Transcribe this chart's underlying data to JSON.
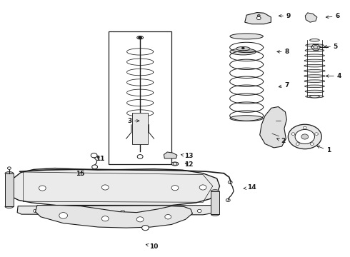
{
  "bg_color": "#ffffff",
  "line_color": "#1a1a1a",
  "fig_width": 4.9,
  "fig_height": 3.6,
  "dpi": 100,
  "label_positions": {
    "1": [
      0.94,
      0.415,
      0.9,
      0.435
    ],
    "2": [
      0.81,
      0.45,
      0.785,
      0.465
    ],
    "3": [
      0.37,
      0.53,
      0.405,
      0.53
    ],
    "4": [
      0.97,
      0.705,
      0.925,
      0.705
    ],
    "5": [
      0.96,
      0.82,
      0.92,
      0.82
    ],
    "6": [
      0.965,
      0.938,
      0.925,
      0.934
    ],
    "7": [
      0.82,
      0.67,
      0.79,
      0.66
    ],
    "8": [
      0.82,
      0.8,
      0.785,
      0.8
    ],
    "9": [
      0.825,
      0.94,
      0.79,
      0.94
    ],
    "10": [
      0.44,
      0.038,
      0.415,
      0.048
    ],
    "11": [
      0.285,
      0.382,
      0.27,
      0.395
    ],
    "12": [
      0.54,
      0.36,
      0.522,
      0.368
    ],
    "13": [
      0.54,
      0.392,
      0.51,
      0.4
    ],
    "14": [
      0.72,
      0.27,
      0.695,
      0.265
    ],
    "15": [
      0.228,
      0.322,
      0.238,
      0.338
    ]
  }
}
